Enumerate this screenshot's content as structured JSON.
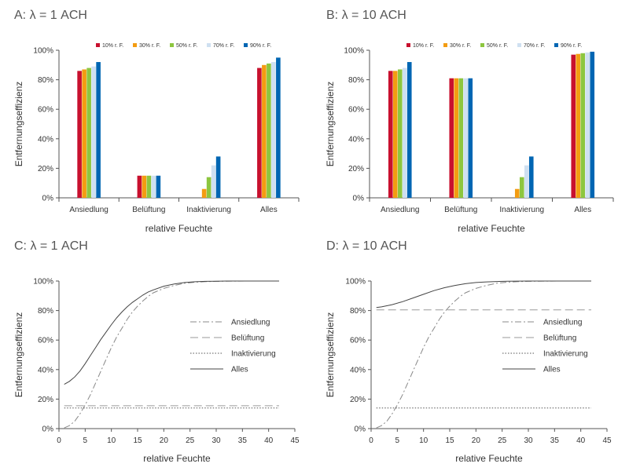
{
  "chart_data": [
    {
      "panel": "A",
      "title": "A: λ = 1 ACH",
      "type": "bar",
      "categories": [
        "Ansiedlung",
        "Belüftung",
        "Inaktivierung",
        "Alles"
      ],
      "xlabel": "relative Feuchte",
      "ylabel": "Entfernungseffizienz",
      "ylim": [
        0,
        100
      ],
      "yticks": [
        "0%",
        "20%",
        "40%",
        "60%",
        "80%",
        "100%"
      ],
      "legend_position": "top",
      "series": [
        {
          "name": "10% r. F.",
          "color": "#c8102e",
          "values": [
            86,
            15,
            0,
            88
          ]
        },
        {
          "name": "30% r. F.",
          "color": "#f39c12",
          "values": [
            87,
            15,
            6,
            90
          ]
        },
        {
          "name": "50% r. F.",
          "color": "#8dc63f",
          "values": [
            88,
            15,
            14,
            91
          ]
        },
        {
          "name": "70% r. F.",
          "color": "#cfe0f1",
          "values": [
            89,
            15,
            22,
            92
          ]
        },
        {
          "name": "90% r. F.",
          "color": "#0066b3",
          "values": [
            92,
            15,
            28,
            95
          ]
        }
      ]
    },
    {
      "panel": "B",
      "title": "B: λ = 10 ACH",
      "type": "bar",
      "categories": [
        "Ansiedlung",
        "Belüftung",
        "Inaktivierung",
        "Alles"
      ],
      "xlabel": "relative Feuchte",
      "ylabel": "Entfernungseffizienz",
      "ylim": [
        0,
        100
      ],
      "yticks": [
        "0%",
        "20%",
        "40%",
        "60%",
        "80%",
        "100%"
      ],
      "legend_position": "top",
      "series": [
        {
          "name": "10% r. F.",
          "color": "#c8102e",
          "values": [
            86,
            81,
            0,
            97
          ]
        },
        {
          "name": "30% r. F.",
          "color": "#f39c12",
          "values": [
            86,
            81,
            6,
            97.5
          ]
        },
        {
          "name": "50% r. F.",
          "color": "#8dc63f",
          "values": [
            87,
            81,
            14,
            98
          ]
        },
        {
          "name": "70% r. F.",
          "color": "#cfe0f1",
          "values": [
            88,
            81,
            22,
            98.5
          ]
        },
        {
          "name": "90% r. F.",
          "color": "#0066b3",
          "values": [
            92,
            81,
            28,
            99
          ]
        }
      ]
    },
    {
      "panel": "C",
      "title": "C: λ = 1 ACH",
      "type": "line",
      "xlabel": "relative Feuchte",
      "ylabel": "Entfernungseffizienz",
      "xlim": [
        0,
        45
      ],
      "ylim": [
        0,
        100
      ],
      "xticks": [
        "0",
        "5",
        "10",
        "15",
        "20",
        "25",
        "30",
        "35",
        "40",
        "45"
      ],
      "yticks": [
        "0%",
        "20%",
        "40%",
        "60%",
        "80%",
        "100%"
      ],
      "legend_position": "right",
      "series": [
        {
          "name": "Ansiedlung",
          "style": "dashdot",
          "color": "#888888",
          "x": [
            1,
            2,
            3,
            4,
            5,
            6,
            7,
            8,
            9,
            10,
            11,
            12,
            13,
            14,
            15,
            16,
            17,
            18,
            20,
            22,
            24,
            26,
            28,
            30,
            32,
            36,
            40,
            42
          ],
          "y": [
            0.5,
            2,
            5,
            10,
            16,
            23,
            31,
            39,
            47,
            55,
            62,
            68,
            74,
            79,
            83,
            86.5,
            89.5,
            92,
            95,
            97,
            98.5,
            99.2,
            99.6,
            99.8,
            99.9,
            100,
            100,
            100
          ]
        },
        {
          "name": "Belüftung",
          "style": "dashed",
          "color": "#9a9a9a",
          "x": [
            1,
            42
          ],
          "y": [
            15.5,
            15.5
          ]
        },
        {
          "name": "Inaktivierung",
          "style": "dotted",
          "color": "#555555",
          "x": [
            1,
            42
          ],
          "y": [
            14,
            14
          ]
        },
        {
          "name": "Alles",
          "style": "solid",
          "color": "#444444",
          "x": [
            1,
            2,
            3,
            4,
            5,
            6,
            7,
            8,
            9,
            10,
            11,
            12,
            13,
            14,
            15,
            16,
            17,
            18,
            20,
            22,
            24,
            26,
            28,
            30,
            32,
            36,
            40,
            42
          ],
          "y": [
            30,
            32,
            35,
            39,
            44,
            49.5,
            55,
            60.5,
            65.5,
            70.5,
            75,
            79,
            82.5,
            85.5,
            88,
            90.5,
            92.5,
            94,
            96.5,
            98,
            99,
            99.5,
            99.8,
            99.9,
            100,
            100,
            100,
            100
          ]
        }
      ]
    },
    {
      "panel": "D",
      "title": "D: λ = 10 ACH",
      "type": "line",
      "xlabel": "relative Feuchte",
      "ylabel": "Entfernungseffizienz",
      "xlim": [
        0,
        45
      ],
      "ylim": [
        0,
        100
      ],
      "xticks": [
        "0",
        "5",
        "10",
        "15",
        "20",
        "25",
        "30",
        "35",
        "40",
        "45"
      ],
      "yticks": [
        "0%",
        "20%",
        "40%",
        "60%",
        "80%",
        "100%"
      ],
      "legend_position": "right",
      "series": [
        {
          "name": "Ansiedlung",
          "style": "dashdot",
          "color": "#888888",
          "x": [
            1,
            2,
            3,
            4,
            5,
            6,
            7,
            8,
            9,
            10,
            11,
            12,
            13,
            14,
            15,
            16,
            17,
            18,
            20,
            22,
            24,
            26,
            28,
            30,
            32,
            36,
            40,
            42
          ],
          "y": [
            0.5,
            2,
            5,
            10,
            16,
            23,
            31,
            39,
            47,
            55,
            62,
            68,
            74,
            79,
            83,
            86.5,
            89.5,
            92,
            95,
            97,
            98.5,
            99.2,
            99.6,
            99.8,
            99.9,
            100,
            100,
            100
          ]
        },
        {
          "name": "Belüftung",
          "style": "dashed",
          "color": "#9a9a9a",
          "x": [
            1,
            42
          ],
          "y": [
            80.5,
            80.5
          ]
        },
        {
          "name": "Inaktivierung",
          "style": "dotted",
          "color": "#555555",
          "x": [
            1,
            42
          ],
          "y": [
            14,
            14
          ]
        },
        {
          "name": "Alles",
          "style": "solid",
          "color": "#444444",
          "x": [
            1,
            2,
            4,
            6,
            8,
            10,
            12,
            14,
            16,
            18,
            20,
            22,
            24,
            26,
            28,
            30,
            32,
            36,
            40,
            42
          ],
          "y": [
            82,
            82.5,
            84,
            86,
            88.5,
            91,
            93.5,
            95.5,
            97,
            98.2,
            99,
            99.4,
            99.7,
            99.85,
            99.95,
            100,
            100,
            100,
            100,
            100
          ]
        }
      ]
    }
  ]
}
